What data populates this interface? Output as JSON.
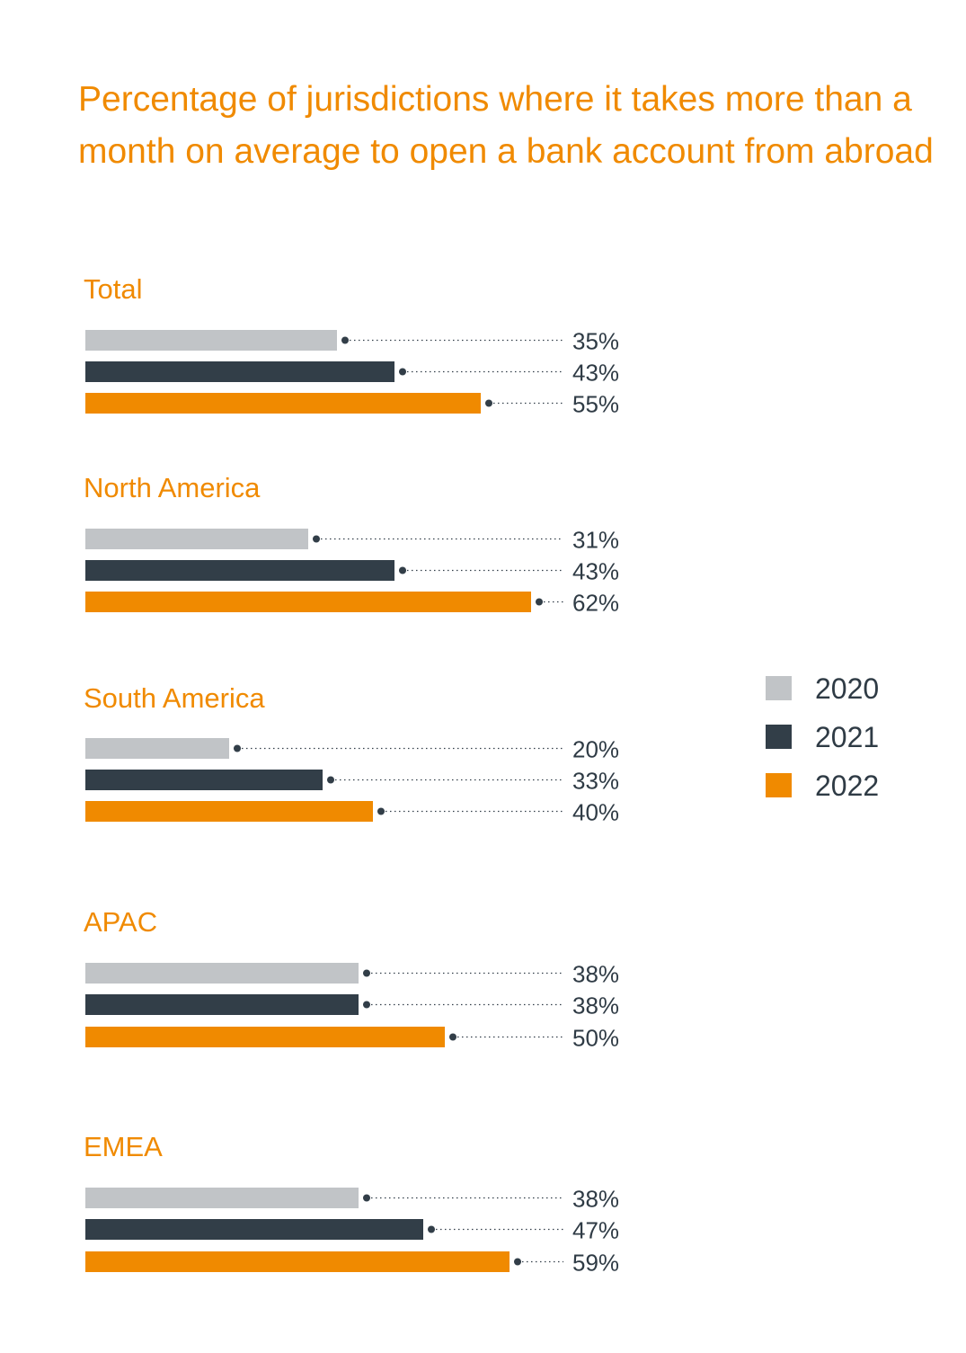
{
  "title": "Percentage of jurisdictions where it takes more than a month on average to open a bank account from abroad",
  "colors": {
    "2020": "#c1c4c7",
    "2021": "#323e48",
    "2022": "#f08a00",
    "title": "#f08a00",
    "value_text": "#2f3b45"
  },
  "chart_data": {
    "type": "bar",
    "orientation": "horizontal",
    "title": "Percentage of jurisdictions where it takes more than a month on average to open a bank account from abroad",
    "categories": [
      "Total",
      "North America",
      "South America",
      "APAC",
      "EMEA"
    ],
    "series": [
      {
        "name": "2020",
        "values": [
          35,
          31,
          20,
          38,
          38
        ],
        "labels": [
          "35%",
          "31%",
          "20%",
          "38%",
          "38%"
        ]
      },
      {
        "name": "2021",
        "values": [
          43,
          43,
          33,
          38,
          47
        ],
        "labels": [
          "43%",
          "43%",
          "33%",
          "38%",
          "47%"
        ]
      },
      {
        "name": "2022",
        "values": [
          55,
          62,
          40,
          50,
          59
        ],
        "labels": [
          "55%",
          "62%",
          "40%",
          "50%",
          "59%"
        ]
      }
    ],
    "unit": "%",
    "xlim": [
      0,
      100
    ],
    "grid": false,
    "legend_position": "right"
  },
  "legend": [
    {
      "label": "2020"
    },
    {
      "label": "2021"
    },
    {
      "label": "2022"
    }
  ]
}
